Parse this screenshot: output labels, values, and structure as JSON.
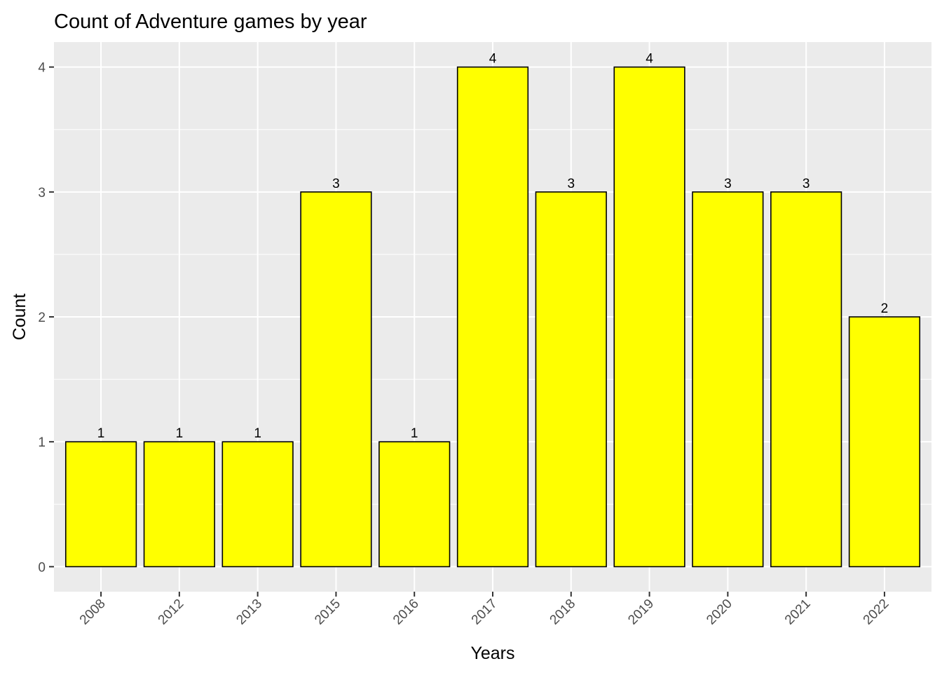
{
  "chart_data": {
    "type": "bar",
    "title": "Count of Adventure games by year",
    "xlabel": "Years",
    "ylabel": "Count",
    "categories": [
      "2008",
      "2012",
      "2013",
      "2015",
      "2016",
      "2017",
      "2018",
      "2019",
      "2020",
      "2021",
      "2022"
    ],
    "values": [
      1,
      1,
      1,
      3,
      1,
      4,
      3,
      4,
      3,
      3,
      2
    ],
    "ylim": [
      -0.2,
      4.2
    ],
    "yticks": [
      0,
      1,
      2,
      3,
      4
    ],
    "grid": true,
    "legend": "none",
    "x_tick_rotation": 45,
    "colors": {
      "bar_fill": "#ffff00",
      "bar_stroke": "#000000",
      "panel_background": "#ebebeb",
      "grid": "#ffffff"
    }
  }
}
